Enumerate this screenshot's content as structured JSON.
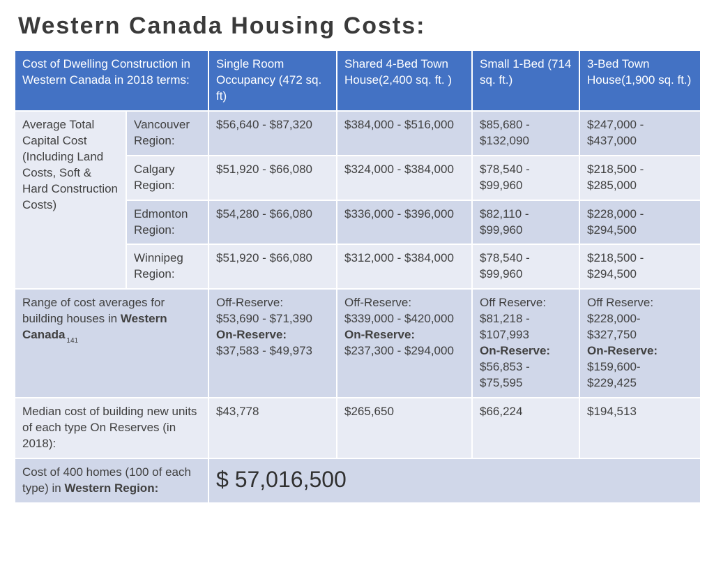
{
  "title": "Western Canada Housing Costs:",
  "header": {
    "lead": "Cost of Dwelling Construction in Western Canada in 2018 terms:",
    "c1": "Single Room Occupancy (472 sq. ft)",
    "c2": "Shared 4-Bed Town House(2,400 sq. ft. )",
    "c3": "Small 1-Bed (714 sq. ft.)",
    "c4": "3-Bed Town House(1,900 sq. ft.)"
  },
  "capital_label": "Average Total Capital Cost (Including Land Costs, Soft & Hard Construction Costs)",
  "regions": {
    "vancouver": {
      "name": "Vancouver Region:",
      "c1": "$56,640 - $87,320",
      "c2": "$384,000 - $516,000",
      "c3": "$85,680 - $132,090",
      "c4": "$247,000 - $437,000"
    },
    "calgary": {
      "name": "Calgary Region:",
      "c1": "$51,920 - $66,080",
      "c2": "$324,000 - $384,000",
      "c3": "$78,540 - $99,960",
      "c4": "$218,500 - $285,000"
    },
    "edmonton": {
      "name": "Edmonton Region:",
      "c1": "$54,280 - $66,080",
      "c2": "$336,000 - $396,000",
      "c3": "$82,110 - $99,960",
      "c4": "$228,000 - $294,500"
    },
    "winnipeg": {
      "name": "Winnipeg Region:",
      "c1": "$51,920 - $66,080",
      "c2": "$312,000 - $384,000",
      "c3": "$78,540 - $99,960",
      "c4": "$218,500 - $294,500"
    }
  },
  "range": {
    "label_a": "Range of cost averages for building houses in ",
    "label_b": "Western Canada",
    "footnote": "141",
    "c1_off_l": "Off-Reserve:",
    "c1_off_v": "$53,690 - $71,390",
    "c1_on_l": "On-Reserve:",
    "c1_on_v": "$37,583 - $49,973",
    "c2_off_l": "Off-Reserve:",
    "c2_off_v": "$339,000 - $420,000",
    "c2_on_l": "On-Reserve:",
    "c2_on_v": "$237,300 - $294,000",
    "c3_off_l": "Off Reserve:",
    "c3_off_v": "$81,218 - $107,993",
    "c3_on_l": "On-Reserve:",
    "c3_on_v": "$56,853 - $75,595",
    "c4_off_l": "Off Reserve:",
    "c4_off_v": "$228,000- $327,750",
    "c4_on_l": "On-Reserve:",
    "c4_on_v": "$159,600- $229,425"
  },
  "median": {
    "label": "Median cost of building new units of each type On Reserves (in 2018):",
    "c1": "$43,778",
    "c2": "$265,650",
    "c3": "$66,224",
    "c4": "$194,513"
  },
  "total": {
    "label_a": "Cost of 400 homes (100 of each type) in ",
    "label_b": "Western Region:",
    "value": "$ 57,016,500"
  },
  "style": {
    "header_bg": "#4372c4",
    "alt_bg": "#d0d7e9",
    "base_bg": "#e8ebf4",
    "border": "#ffffff",
    "title_fontsize": 34,
    "cell_fontsize": 17,
    "total_fontsize": 32
  }
}
